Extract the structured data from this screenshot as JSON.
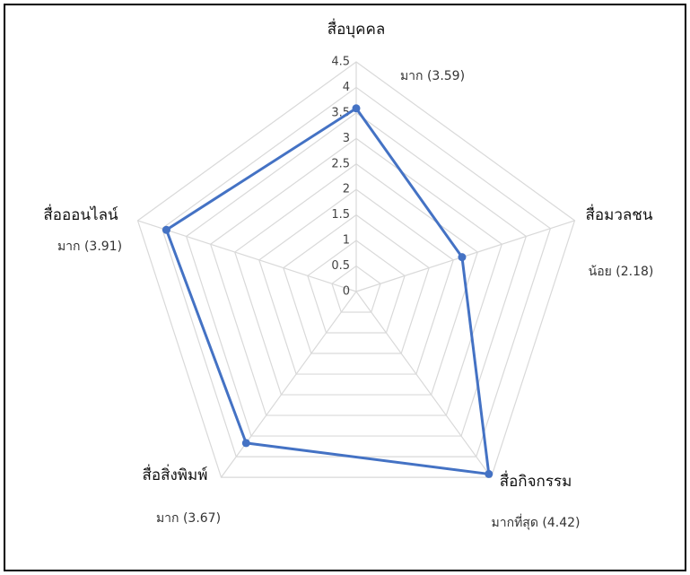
{
  "chart_data": {
    "type": "radar",
    "categories": [
      "สื่อบุคคล",
      "สื่อมวลชน",
      "สื่อกิจกรรม",
      "สื่อสิ่งพิมพ์",
      "สื่อออนไลน์"
    ],
    "values": [
      3.59,
      2.18,
      4.42,
      3.67,
      3.91
    ],
    "value_labels": [
      "มาก (3.59)",
      "น้อย (2.18)",
      "มากที่สุด (4.42)",
      "มาก (3.67)",
      "มาก (3.91)"
    ],
    "color": "#4472c4",
    "ylim": [
      0,
      4.5
    ],
    "yticks": [
      0,
      0.5,
      1,
      1.5,
      2,
      2.5,
      3,
      3.5,
      4,
      4.5
    ],
    "grid": true
  }
}
